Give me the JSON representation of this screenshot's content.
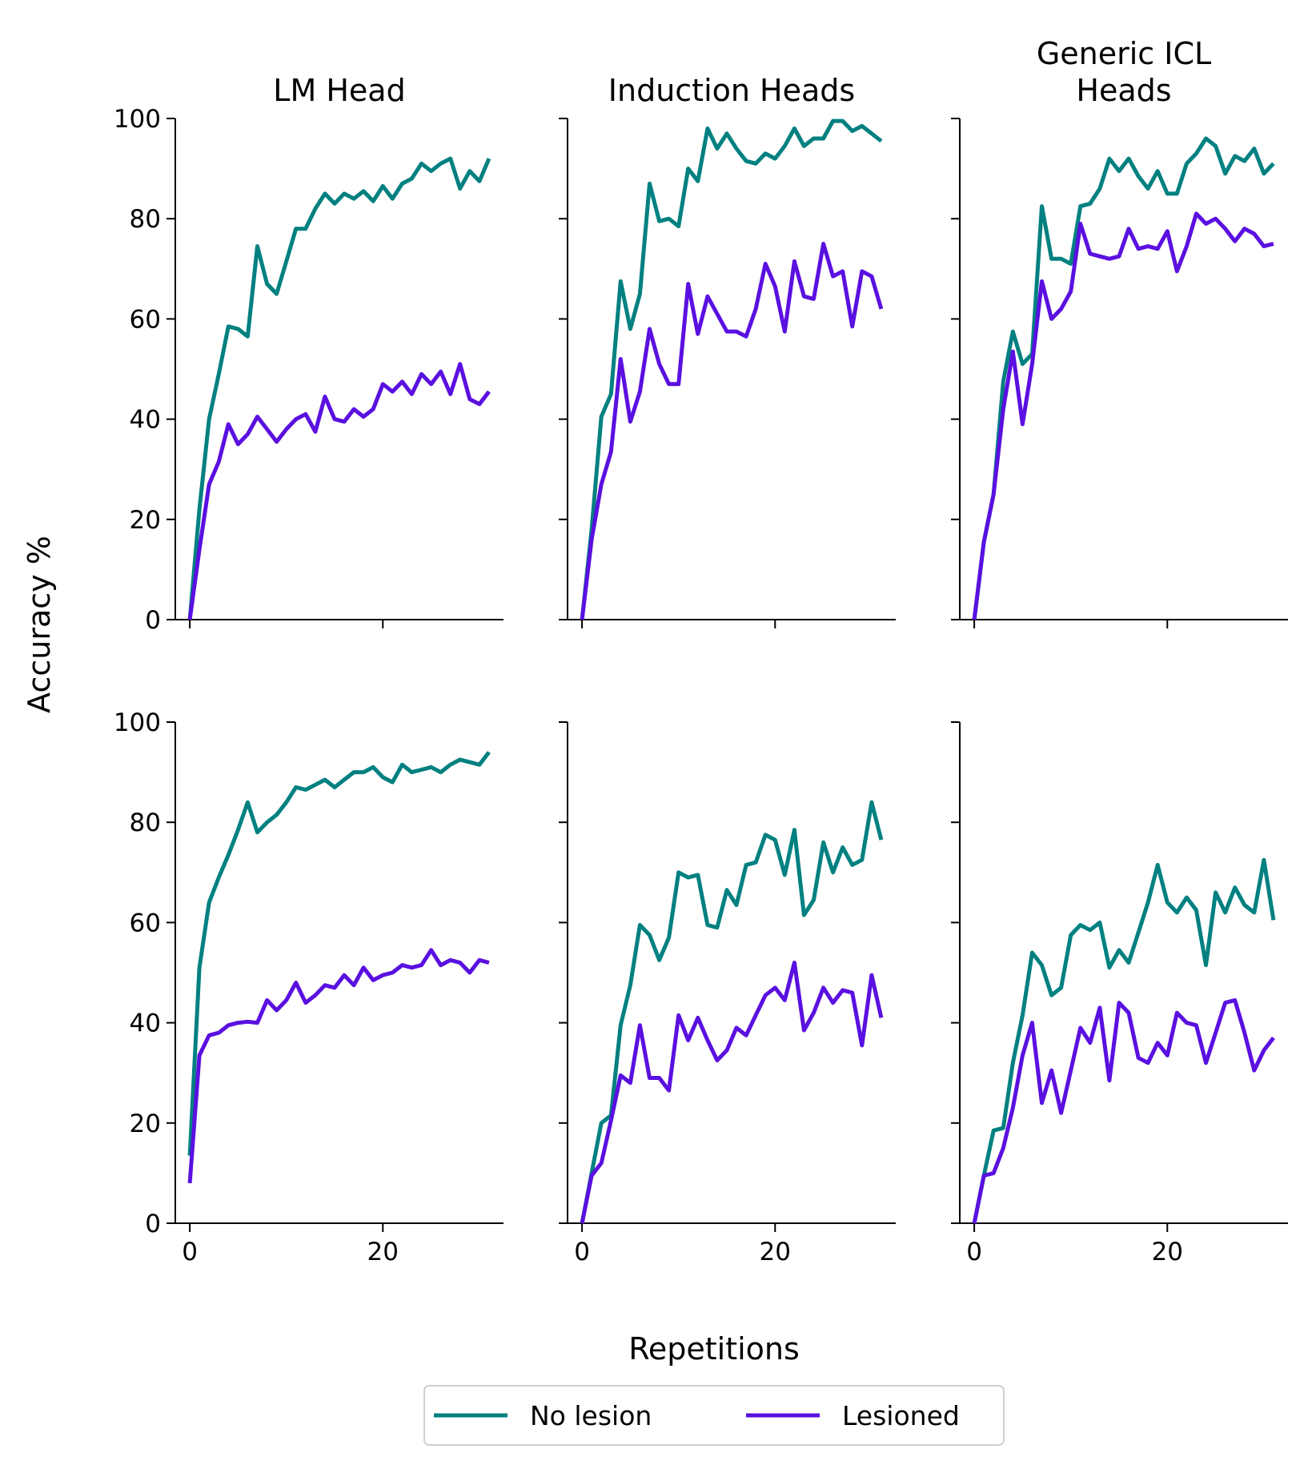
{
  "figure": {
    "ylabel": "Accuracy %",
    "xlabel": "Repetitions",
    "legend": {
      "placement": "bottom-center",
      "entries": [
        {
          "label": "No lesion",
          "color": "#008080"
        },
        {
          "label": "Lesioned",
          "color": "#5a10e0"
        }
      ]
    }
  },
  "chart_data": [
    {
      "type": "line",
      "title": [
        "LM Head"
      ],
      "row": 0,
      "col": 0,
      "xlim": [
        -1.5,
        32.5
      ],
      "ylim": [
        0,
        100
      ],
      "xticks": [
        0,
        20
      ],
      "yticks": [
        0,
        20,
        40,
        60,
        80,
        100
      ],
      "grid": false,
      "series": [
        {
          "name": "No lesion",
          "color": "#008080",
          "x": [
            0,
            1,
            2,
            3,
            4,
            5,
            6,
            7,
            8,
            9,
            10,
            11,
            12,
            13,
            14,
            15,
            16,
            17,
            18,
            19,
            20,
            21,
            22,
            23,
            24,
            25,
            26,
            27,
            28,
            29,
            30,
            31
          ],
          "y": [
            0,
            22,
            40,
            49,
            58.5,
            58,
            56.5,
            74.5,
            67,
            65,
            71.5,
            78,
            78,
            82,
            85,
            83,
            85,
            84,
            85.5,
            83.5,
            86.5,
            84,
            87,
            88,
            91,
            89.5,
            91,
            92,
            86,
            89.5,
            87.5,
            92
          ]
        },
        {
          "name": "Lesioned",
          "color": "#5a10e0",
          "x": [
            0,
            1,
            2,
            3,
            4,
            5,
            6,
            7,
            8,
            9,
            10,
            11,
            12,
            13,
            14,
            15,
            16,
            17,
            18,
            19,
            20,
            21,
            22,
            23,
            24,
            25,
            26,
            27,
            28,
            29,
            30,
            31
          ],
          "y": [
            0,
            14,
            27,
            31.5,
            39,
            35,
            37,
            40.5,
            38,
            35.5,
            38,
            40,
            41,
            37.5,
            44.5,
            40,
            39.5,
            42,
            40.5,
            42,
            47,
            45.5,
            47.5,
            45,
            49,
            47,
            49.5,
            45,
            51,
            44,
            43,
            45.5
          ]
        }
      ]
    },
    {
      "type": "line",
      "title": [
        "Induction Heads"
      ],
      "row": 0,
      "col": 1,
      "xlim": [
        -1.5,
        32.5
      ],
      "ylim": [
        0,
        100
      ],
      "xticks": [
        0,
        20
      ],
      "yticks": [
        0,
        20,
        40,
        60,
        80,
        100
      ],
      "grid": false,
      "series": [
        {
          "name": "No lesion",
          "color": "#008080",
          "x": [
            0,
            1,
            2,
            3,
            4,
            5,
            6,
            7,
            8,
            9,
            10,
            11,
            12,
            13,
            14,
            15,
            16,
            17,
            18,
            19,
            20,
            21,
            22,
            23,
            24,
            25,
            26,
            27,
            28,
            29,
            30,
            31
          ],
          "y": [
            0,
            18,
            40.5,
            45,
            67.5,
            58,
            65,
            87,
            79.5,
            80,
            78.5,
            90,
            87.5,
            98,
            94,
            97,
            94,
            91.5,
            91,
            93,
            92,
            94.5,
            98,
            94.5,
            96,
            96,
            99.5,
            99.5,
            97.5,
            98.5,
            97,
            95.5
          ]
        },
        {
          "name": "Lesioned",
          "color": "#5a10e0",
          "x": [
            0,
            1,
            2,
            3,
            4,
            5,
            6,
            7,
            8,
            9,
            10,
            11,
            12,
            13,
            14,
            15,
            16,
            17,
            18,
            19,
            20,
            21,
            22,
            23,
            24,
            25,
            26,
            27,
            28,
            29,
            30,
            31
          ],
          "y": [
            0,
            16,
            27,
            33.5,
            52,
            39.5,
            45.5,
            58,
            51,
            47,
            47,
            67,
            57,
            64.5,
            61,
            57.5,
            57.5,
            56.5,
            62,
            71,
            66.5,
            57.5,
            71.5,
            64.5,
            64,
            75,
            68.5,
            69.5,
            58.5,
            69.5,
            68.5,
            62
          ]
        }
      ]
    },
    {
      "type": "line",
      "title": [
        "Generic ICL",
        "Heads"
      ],
      "row": 0,
      "col": 2,
      "xlim": [
        -1.5,
        32.5
      ],
      "ylim": [
        0,
        100
      ],
      "xticks": [
        0,
        20
      ],
      "yticks": [
        0,
        20,
        40,
        60,
        80,
        100
      ],
      "grid": false,
      "series": [
        {
          "name": "No lesion",
          "color": "#008080",
          "x": [
            0,
            1,
            2,
            3,
            4,
            5,
            6,
            7,
            8,
            9,
            10,
            11,
            12,
            13,
            14,
            15,
            16,
            17,
            18,
            19,
            20,
            21,
            22,
            23,
            24,
            25,
            26,
            27,
            28,
            29,
            30,
            31
          ],
          "y": [
            0,
            15.5,
            25,
            47.5,
            57.5,
            51,
            53,
            82.5,
            72,
            72,
            71,
            82.5,
            83,
            86,
            92,
            89.5,
            92,
            88.5,
            86,
            89.5,
            85,
            85,
            91,
            93,
            96,
            94.5,
            89,
            92.5,
            91.5,
            94,
            89,
            91
          ]
        },
        {
          "name": "Lesioned",
          "color": "#5a10e0",
          "x": [
            0,
            1,
            2,
            3,
            4,
            5,
            6,
            7,
            8,
            9,
            10,
            11,
            12,
            13,
            14,
            15,
            16,
            17,
            18,
            19,
            20,
            21,
            22,
            23,
            24,
            25,
            26,
            27,
            28,
            29,
            30,
            31
          ],
          "y": [
            0,
            15.5,
            25,
            42,
            53.5,
            39,
            51,
            67.5,
            60,
            62,
            65.5,
            79,
            73,
            72.5,
            72,
            72.5,
            78,
            74,
            74.5,
            74,
            77.5,
            69.5,
            74.5,
            81,
            79,
            80,
            78,
            75.5,
            78,
            77,
            74.5,
            75
          ]
        }
      ]
    },
    {
      "type": "line",
      "title": [],
      "row": 1,
      "col": 0,
      "xlim": [
        -1.5,
        32.5
      ],
      "ylim": [
        0,
        100
      ],
      "xticks": [
        0,
        20
      ],
      "yticks": [
        0,
        20,
        40,
        60,
        80,
        100
      ],
      "grid": false,
      "series": [
        {
          "name": "No lesion",
          "color": "#008080",
          "x": [
            0,
            1,
            2,
            3,
            4,
            5,
            6,
            7,
            8,
            9,
            10,
            11,
            12,
            13,
            14,
            15,
            16,
            17,
            18,
            19,
            20,
            21,
            22,
            23,
            24,
            25,
            26,
            27,
            28,
            29,
            30,
            31
          ],
          "y": [
            13.5,
            51,
            64,
            69,
            73.5,
            78.5,
            84,
            78,
            80,
            81.5,
            84,
            87,
            86.5,
            87.5,
            88.5,
            87,
            88.5,
            90,
            90,
            91,
            89,
            88,
            91.5,
            90,
            90.5,
            91,
            90,
            91.5,
            92.5,
            92,
            91.5,
            94
          ]
        },
        {
          "name": "Lesioned",
          "color": "#5a10e0",
          "x": [
            0,
            1,
            2,
            3,
            4,
            5,
            6,
            7,
            8,
            9,
            10,
            11,
            12,
            13,
            14,
            15,
            16,
            17,
            18,
            19,
            20,
            21,
            22,
            23,
            24,
            25,
            26,
            27,
            28,
            29,
            30,
            31
          ],
          "y": [
            8,
            33.5,
            37.5,
            38,
            39.5,
            40,
            40.2,
            40,
            44.5,
            42.5,
            44.5,
            48,
            44,
            45.5,
            47.5,
            47,
            49.5,
            47.5,
            51,
            48.5,
            49.5,
            50,
            51.5,
            51,
            51.5,
            54.5,
            51.5,
            52.5,
            52,
            50,
            52.5,
            52
          ]
        }
      ]
    },
    {
      "type": "line",
      "title": [],
      "row": 1,
      "col": 1,
      "xlim": [
        -1.5,
        32.5
      ],
      "ylim": [
        0,
        100
      ],
      "xticks": [
        0,
        20
      ],
      "yticks": [
        0,
        20,
        40,
        60,
        80,
        100
      ],
      "grid": false,
      "series": [
        {
          "name": "No lesion",
          "color": "#008080",
          "x": [
            0,
            1,
            2,
            3,
            4,
            5,
            6,
            7,
            8,
            9,
            10,
            11,
            12,
            13,
            14,
            15,
            16,
            17,
            18,
            19,
            20,
            21,
            22,
            23,
            24,
            25,
            26,
            27,
            28,
            29,
            30,
            31
          ],
          "y": [
            0,
            10,
            20,
            21.5,
            39.5,
            47.5,
            59.5,
            57.5,
            52.5,
            57,
            70,
            69,
            69.5,
            59.5,
            59,
            66.5,
            63.5,
            71.5,
            72,
            77.5,
            76.5,
            69.5,
            78.5,
            61.5,
            64.5,
            76,
            70,
            75,
            71.5,
            72.5,
            84,
            76.5
          ]
        },
        {
          "name": "Lesioned",
          "color": "#5a10e0",
          "x": [
            0,
            1,
            2,
            3,
            4,
            5,
            6,
            7,
            8,
            9,
            10,
            11,
            12,
            13,
            14,
            15,
            16,
            17,
            18,
            19,
            20,
            21,
            22,
            23,
            24,
            25,
            26,
            27,
            28,
            29,
            30,
            31
          ],
          "y": [
            0,
            9.5,
            12,
            20.5,
            29.5,
            28,
            39.5,
            29,
            29,
            26.5,
            41.5,
            36.5,
            41,
            36.5,
            32.5,
            34.5,
            39,
            37.5,
            41.5,
            45.5,
            47,
            44.5,
            52,
            38.5,
            42,
            47,
            44,
            46.5,
            46,
            35.5,
            49.5,
            41
          ]
        }
      ]
    },
    {
      "type": "line",
      "title": [],
      "row": 1,
      "col": 2,
      "xlim": [
        -1.5,
        32.5
      ],
      "ylim": [
        0,
        100
      ],
      "xticks": [
        0,
        20
      ],
      "yticks": [
        0,
        20,
        40,
        60,
        80,
        100
      ],
      "grid": false,
      "series": [
        {
          "name": "No lesion",
          "color": "#008080",
          "x": [
            0,
            1,
            2,
            3,
            4,
            5,
            6,
            7,
            8,
            9,
            10,
            11,
            12,
            13,
            14,
            15,
            16,
            17,
            18,
            19,
            20,
            21,
            22,
            23,
            24,
            25,
            26,
            27,
            28,
            29,
            30,
            31
          ],
          "y": [
            0,
            9.5,
            18.5,
            19,
            32,
            41.5,
            54,
            51.5,
            45.5,
            47,
            57.5,
            59.5,
            58.5,
            60,
            51,
            54.5,
            52,
            58,
            64,
            71.5,
            64,
            62,
            65,
            62.5,
            51.5,
            66,
            62,
            67,
            63.5,
            62,
            72.5,
            60.5
          ]
        },
        {
          "name": "Lesioned",
          "color": "#5a10e0",
          "x": [
            0,
            1,
            2,
            3,
            4,
            5,
            6,
            7,
            8,
            9,
            10,
            11,
            12,
            13,
            14,
            15,
            16,
            17,
            18,
            19,
            20,
            21,
            22,
            23,
            24,
            25,
            26,
            27,
            28,
            29,
            30,
            31
          ],
          "y": [
            0,
            9.5,
            10,
            15,
            23,
            33.5,
            40,
            24,
            30.5,
            22,
            30.5,
            39,
            36,
            43,
            28.5,
            44,
            42,
            33,
            32,
            36,
            33.5,
            42,
            40,
            39.5,
            32,
            38,
            44,
            44.5,
            38,
            30.5,
            34.5,
            37
          ]
        }
      ]
    }
  ]
}
